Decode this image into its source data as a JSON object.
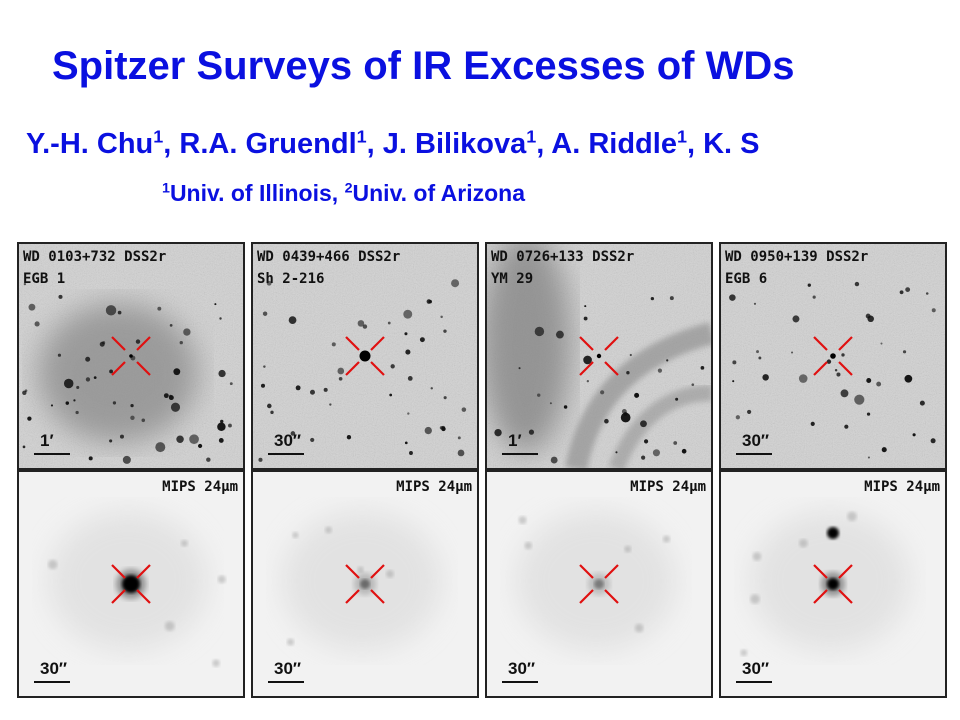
{
  "header": {
    "title": "Spitzer Surveys of IR Excesses of WDs",
    "authors": [
      {
        "name": "Y.-H. Chu",
        "sup": "1",
        "sep": ", "
      },
      {
        "name": "R.A. Gruendl",
        "sup": "1",
        "sep": ", "
      },
      {
        "name": "J. Bilikova",
        "sup": "1",
        "sep": ", "
      },
      {
        "name": "A. Riddle",
        "sup": "1",
        "sep": ", "
      },
      {
        "name": "K. S",
        "sup": "",
        "sep": ""
      }
    ],
    "affiliations": [
      {
        "sup": "1",
        "name": "Univ. of Illinois",
        "sep": ", "
      },
      {
        "sup": "2",
        "name": "Univ. of Arizona",
        "sep": ""
      }
    ]
  },
  "colors": {
    "title": "#0a10e0",
    "marker": "#e01010"
  },
  "panels": [
    {
      "wd": "WD 0103+732",
      "survey": "DSS2r",
      "nebula": "EGB 1",
      "scale_top": "1′",
      "mips": "MIPS 24μm",
      "scale_bottom": "30″"
    },
    {
      "wd": "WD 0439+466",
      "survey": "DSS2r",
      "nebula": "Sh 2-216",
      "scale_top": "30″",
      "mips": "MIPS 24μm",
      "scale_bottom": "30″"
    },
    {
      "wd": "WD 0726+133",
      "survey": "DSS2r",
      "nebula": "YM 29",
      "scale_top": "1′",
      "mips": "MIPS 24μm",
      "scale_bottom": "30″"
    },
    {
      "wd": "WD 0950+139",
      "survey": "DSS2r",
      "nebula": "EGB 6",
      "scale_top": "30″",
      "mips": "MIPS 24μm",
      "scale_bottom": "30″"
    }
  ]
}
